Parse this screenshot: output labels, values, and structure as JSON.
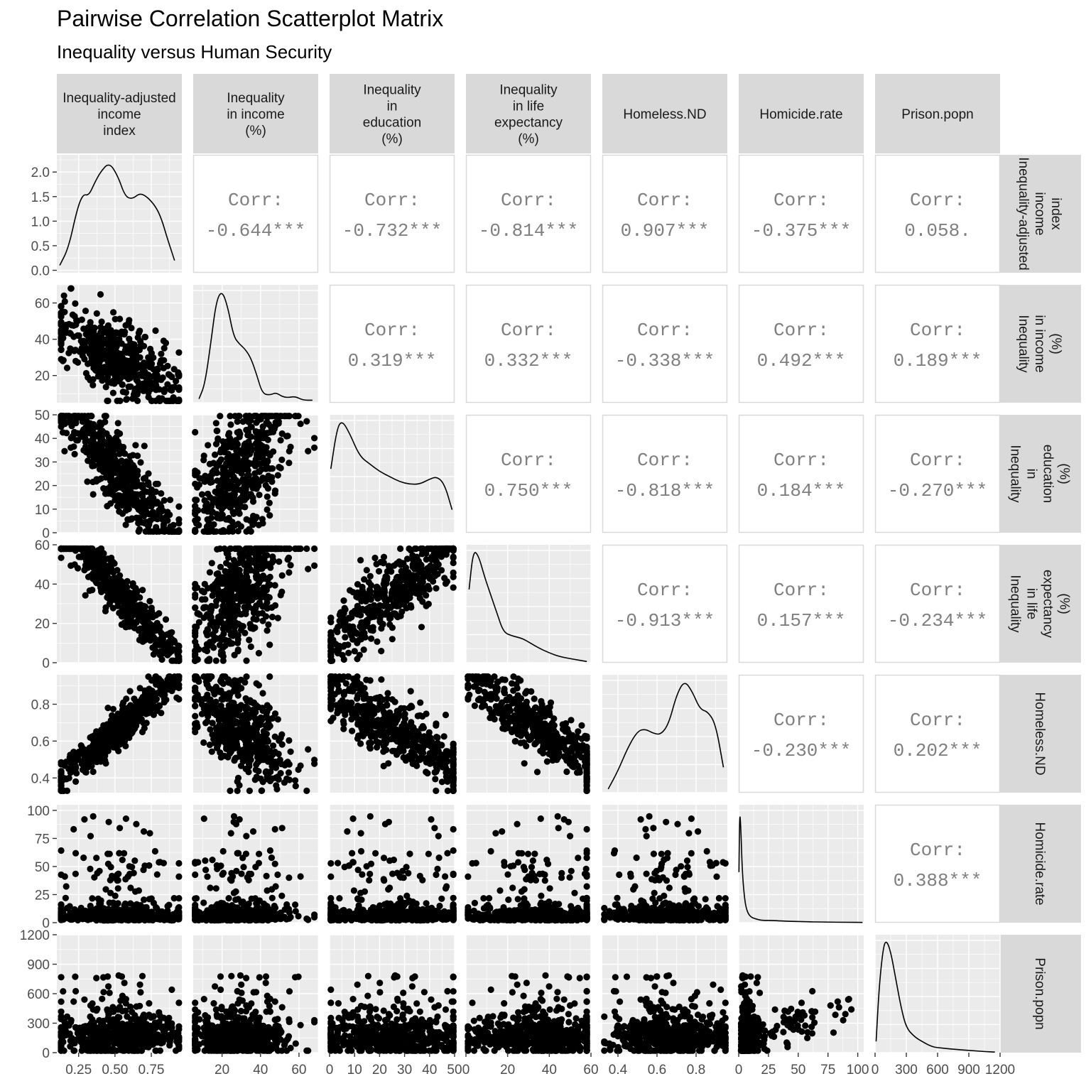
{
  "title": "Pairwise Correlation Scatterplot Matrix",
  "subtitle": "Inequality versus Human Security",
  "chart_data": {
    "type": "scatter",
    "kind": "scatterplot-matrix",
    "variables": [
      {
        "key": "iaii",
        "lines": [
          "Inequality-adjusted",
          "income",
          "index"
        ],
        "row_lines": [
          "Inequality-adjusted",
          "income",
          "index"
        ],
        "ticks": [
          0.25,
          0.5,
          0.75
        ],
        "tick_labels": [
          "0.25",
          "0.50",
          "0.75"
        ],
        "range": [
          0.1,
          0.96
        ]
      },
      {
        "key": "iinc",
        "lines": [
          "Inequality",
          "in income",
          "(%)"
        ],
        "row_lines": [
          "Inequality",
          "in income",
          "(%)"
        ],
        "ticks": [
          20,
          40,
          60
        ],
        "tick_labels": [
          "20",
          "40",
          "60"
        ],
        "range": [
          5,
          70
        ]
      },
      {
        "key": "iedu",
        "lines": [
          "Inequality",
          "in",
          "education",
          "(%)"
        ],
        "row_lines": [
          "Inequality",
          "in",
          "education",
          "(%)"
        ],
        "ticks": [
          0,
          10,
          20,
          30,
          40,
          50
        ],
        "tick_labels": [
          "0",
          "10",
          "20",
          "30",
          "40",
          "50"
        ],
        "range": [
          0,
          50
        ]
      },
      {
        "key": "ilife",
        "lines": [
          "Inequality",
          "in life",
          "expectancy",
          "(%)"
        ],
        "row_lines": [
          "Inequality",
          "in life",
          "expectancy",
          "(%)"
        ],
        "ticks": [
          0,
          20,
          40,
          60
        ],
        "tick_labels": [
          "0",
          "20",
          "40",
          "60"
        ],
        "range": [
          0,
          60
        ]
      },
      {
        "key": "homeless",
        "lines": [
          "Homeless.ND"
        ],
        "row_lines": [
          "Homeless.ND"
        ],
        "ticks": [
          0.4,
          0.6,
          0.8
        ],
        "tick_labels": [
          "0.4",
          "0.6",
          "0.8"
        ],
        "range": [
          0.32,
          0.96
        ]
      },
      {
        "key": "homicide",
        "lines": [
          "Homicide.rate"
        ],
        "row_lines": [
          "Homicide.rate"
        ],
        "ticks": [
          0,
          25,
          50,
          75,
          100
        ],
        "tick_labels": [
          "0",
          "25",
          "50",
          "75",
          "100"
        ],
        "row_ticks": [
          0,
          25,
          50,
          75,
          100
        ],
        "range": [
          0,
          105
        ]
      },
      {
        "key": "prison",
        "lines": [
          "Prison.popn"
        ],
        "row_lines": [
          "Prison.popn"
        ],
        "ticks": [
          0,
          300,
          600,
          900,
          1200
        ],
        "tick_labels": [
          "0",
          "300",
          "600",
          "900",
          "1200"
        ],
        "range": [
          0,
          1200
        ]
      }
    ],
    "y_axis_ticks": [
      {
        "row": 0,
        "ticks": [
          0.0,
          0.5,
          1.0,
          1.5,
          2.0
        ],
        "labels": [
          "0.0",
          "0.5",
          "1.0",
          "1.5",
          "2.0"
        ],
        "range": [
          -0.05,
          2.35
        ]
      },
      {
        "row": 1,
        "ticks": [
          20,
          40,
          60
        ],
        "labels": [
          "20",
          "40",
          "60"
        ],
        "range": [
          5,
          70
        ]
      },
      {
        "row": 2,
        "ticks": [
          0,
          10,
          20,
          30,
          40,
          50
        ],
        "labels": [
          "0",
          "10",
          "20",
          "30",
          "40",
          "50"
        ],
        "range": [
          0,
          50
        ]
      },
      {
        "row": 3,
        "ticks": [
          0,
          20,
          40,
          60
        ],
        "labels": [
          "0",
          "20",
          "40",
          "60"
        ],
        "range": [
          0,
          60
        ]
      },
      {
        "row": 4,
        "ticks": [
          0.4,
          0.6,
          0.8
        ],
        "labels": [
          "0.4",
          "0.6",
          "0.8"
        ],
        "range": [
          0.32,
          0.96
        ]
      },
      {
        "row": 5,
        "ticks": [
          0,
          25,
          50,
          75,
          100
        ],
        "labels": [
          "0",
          "25",
          "50",
          "75",
          "100"
        ],
        "range": [
          0,
          105
        ]
      },
      {
        "row": 6,
        "ticks": [
          0,
          300,
          600,
          900,
          1200
        ],
        "labels": [
          "0",
          "300",
          "600",
          "900",
          "1200"
        ],
        "range": [
          0,
          1200
        ]
      }
    ],
    "correlations": [
      {
        "row": 0,
        "col": 1,
        "label": "Corr:",
        "value": "-0.644***"
      },
      {
        "row": 0,
        "col": 2,
        "label": "Corr:",
        "value": "-0.732***"
      },
      {
        "row": 0,
        "col": 3,
        "label": "Corr:",
        "value": "-0.814***"
      },
      {
        "row": 0,
        "col": 4,
        "label": "Corr:",
        "value": "0.907***"
      },
      {
        "row": 0,
        "col": 5,
        "label": "Corr:",
        "value": "-0.375***"
      },
      {
        "row": 0,
        "col": 6,
        "label": "Corr:",
        "value": "0.058."
      },
      {
        "row": 1,
        "col": 2,
        "label": "Corr:",
        "value": "0.319***"
      },
      {
        "row": 1,
        "col": 3,
        "label": "Corr:",
        "value": "0.332***"
      },
      {
        "row": 1,
        "col": 4,
        "label": "Corr:",
        "value": "-0.338***"
      },
      {
        "row": 1,
        "col": 5,
        "label": "Corr:",
        "value": "0.492***"
      },
      {
        "row": 1,
        "col": 6,
        "label": "Corr:",
        "value": "0.189***"
      },
      {
        "row": 2,
        "col": 3,
        "label": "Corr:",
        "value": "0.750***"
      },
      {
        "row": 2,
        "col": 4,
        "label": "Corr:",
        "value": "-0.818***"
      },
      {
        "row": 2,
        "col": 5,
        "label": "Corr:",
        "value": "0.184***"
      },
      {
        "row": 2,
        "col": 6,
        "label": "Corr:",
        "value": "-0.270***"
      },
      {
        "row": 3,
        "col": 4,
        "label": "Corr:",
        "value": "-0.913***"
      },
      {
        "row": 3,
        "col": 5,
        "label": "Corr:",
        "value": "0.157***"
      },
      {
        "row": 3,
        "col": 6,
        "label": "Corr:",
        "value": "-0.234***"
      },
      {
        "row": 4,
        "col": 5,
        "label": "Corr:",
        "value": "-0.230***"
      },
      {
        "row": 4,
        "col": 6,
        "label": "Corr:",
        "value": "0.202***"
      },
      {
        "row": 5,
        "col": 6,
        "label": "Corr:",
        "value": "0.388***"
      }
    ],
    "density_curves": [
      {
        "var": 0,
        "points": [
          [
            0.12,
            0.1
          ],
          [
            0.18,
            0.45
          ],
          [
            0.24,
            1.25
          ],
          [
            0.28,
            1.55
          ],
          [
            0.32,
            1.52
          ],
          [
            0.36,
            1.78
          ],
          [
            0.4,
            2.0
          ],
          [
            0.46,
            2.2
          ],
          [
            0.52,
            1.92
          ],
          [
            0.57,
            1.5
          ],
          [
            0.62,
            1.45
          ],
          [
            0.67,
            1.57
          ],
          [
            0.72,
            1.5
          ],
          [
            0.78,
            1.3
          ],
          [
            0.82,
            1.05
          ],
          [
            0.86,
            0.65
          ],
          [
            0.91,
            0.2
          ]
        ]
      },
      {
        "var": 1,
        "points": [
          [
            8,
            0.03
          ],
          [
            11,
            0.14
          ],
          [
            14,
            0.45
          ],
          [
            17,
            0.8
          ],
          [
            20,
            0.88
          ],
          [
            23,
            0.75
          ],
          [
            26,
            0.52
          ],
          [
            29,
            0.46
          ],
          [
            32,
            0.42
          ],
          [
            35,
            0.35
          ],
          [
            38,
            0.22
          ],
          [
            41,
            0.07
          ],
          [
            45,
            0.06
          ],
          [
            48,
            0.08
          ],
          [
            51,
            0.05
          ],
          [
            54,
            0.04
          ],
          [
            58,
            0.05
          ],
          [
            62,
            0.02
          ],
          [
            67,
            0.02
          ]
        ]
      },
      {
        "var": 2,
        "points": [
          [
            0.5,
            0.5
          ],
          [
            3,
            0.82
          ],
          [
            5,
            0.88
          ],
          [
            8,
            0.78
          ],
          [
            12,
            0.6
          ],
          [
            16,
            0.54
          ],
          [
            20,
            0.48
          ],
          [
            24,
            0.44
          ],
          [
            28,
            0.4
          ],
          [
            32,
            0.38
          ],
          [
            36,
            0.38
          ],
          [
            40,
            0.42
          ],
          [
            43,
            0.44
          ],
          [
            46,
            0.38
          ],
          [
            49,
            0.18
          ]
        ]
      },
      {
        "var": 3,
        "points": [
          [
            1.5,
            0.6
          ],
          [
            3.5,
            0.92
          ],
          [
            6,
            0.88
          ],
          [
            9,
            0.7
          ],
          [
            12,
            0.55
          ],
          [
            15,
            0.4
          ],
          [
            18,
            0.25
          ],
          [
            22,
            0.22
          ],
          [
            27,
            0.2
          ],
          [
            31,
            0.16
          ],
          [
            35,
            0.12
          ],
          [
            40,
            0.08
          ],
          [
            45,
            0.05
          ],
          [
            51,
            0.03
          ],
          [
            58,
            0.01
          ]
        ]
      },
      {
        "var": 4,
        "points": [
          [
            0.35,
            0.05
          ],
          [
            0.4,
            0.3
          ],
          [
            0.45,
            0.62
          ],
          [
            0.5,
            0.85
          ],
          [
            0.54,
            0.88
          ],
          [
            0.58,
            0.82
          ],
          [
            0.62,
            0.8
          ],
          [
            0.66,
            0.95
          ],
          [
            0.7,
            1.35
          ],
          [
            0.74,
            1.55
          ],
          [
            0.78,
            1.4
          ],
          [
            0.82,
            1.15
          ],
          [
            0.86,
            1.12
          ],
          [
            0.9,
            0.95
          ],
          [
            0.94,
            0.35
          ]
        ]
      },
      {
        "var": 5,
        "points": [
          [
            0.2,
            0.45
          ],
          [
            0.8,
            1.0
          ],
          [
            1.8,
            0.85
          ],
          [
            3,
            0.45
          ],
          [
            5,
            0.2
          ],
          [
            7,
            0.1
          ],
          [
            10,
            0.05
          ],
          [
            15,
            0.03
          ],
          [
            20,
            0.02
          ],
          [
            28,
            0.02
          ],
          [
            35,
            0.015
          ],
          [
            50,
            0.01
          ],
          [
            70,
            0.005
          ],
          [
            95,
            0.003
          ],
          [
            104,
            0.002
          ]
        ]
      },
      {
        "var": 6,
        "points": [
          [
            10,
            0.1
          ],
          [
            40,
            0.6
          ],
          [
            80,
            0.95
          ],
          [
            110,
            1.0
          ],
          [
            150,
            0.9
          ],
          [
            200,
            0.65
          ],
          [
            250,
            0.4
          ],
          [
            300,
            0.22
          ],
          [
            380,
            0.14
          ],
          [
            450,
            0.1
          ],
          [
            550,
            0.05
          ],
          [
            650,
            0.04
          ],
          [
            750,
            0.03
          ],
          [
            900,
            0.02
          ],
          [
            1050,
            0.01
          ],
          [
            1150,
            0.005
          ]
        ]
      }
    ],
    "style": {
      "panel_bg": "#ebebeb",
      "strip_bg": "#d9d9d9",
      "grid": "#ffffff",
      "point": "#000000",
      "corr_text": "#7f7f7f",
      "border": "#d9d9d9"
    }
  }
}
